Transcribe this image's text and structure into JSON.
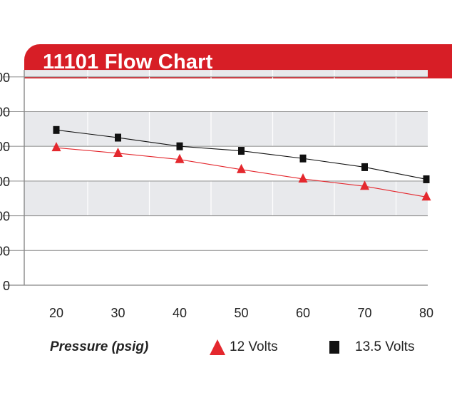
{
  "chart_data": {
    "type": "line",
    "title": "11101 Flow Chart",
    "xlabel": "Pressure (psig)",
    "x": [
      20,
      30,
      40,
      50,
      60,
      70,
      80
    ],
    "y_tick_labels": [
      "00",
      "00",
      "00",
      "00",
      "00",
      "00",
      "0"
    ],
    "y_ticks": [
      6,
      5,
      4,
      3,
      2,
      1,
      0
    ],
    "ylim": [
      0,
      6.2
    ],
    "grid": true,
    "series": [
      {
        "name": "12 Volts",
        "marker": "triangle",
        "color": "#e4282e",
        "values": [
          3.96,
          3.8,
          3.62,
          3.33,
          3.06,
          2.85,
          2.54
        ]
      },
      {
        "name": "13.5 Volts",
        "marker": "square",
        "color": "#111111",
        "values": [
          4.47,
          4.25,
          4.0,
          3.87,
          3.65,
          3.4,
          3.05
        ]
      }
    ],
    "accent": "#d71e26"
  }
}
